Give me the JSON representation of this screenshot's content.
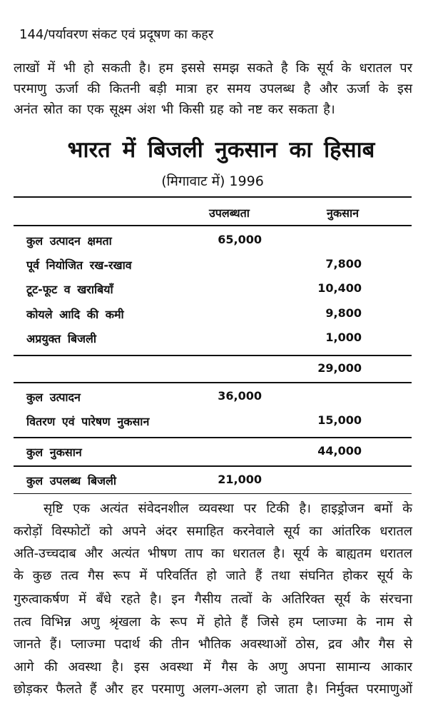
{
  "running_header": "144/पर्यावरण संकट एवं प्रदूषण का कहर",
  "paragraph1": [
    "लाखों में भी हो सकती है। हम इससे समझ सकते है कि सूर्य के धरातल पर",
    "परमाणु ऊर्जा की कितनी बड़ी मात्रा हर समय उपलब्ध है और ऊर्जा के इस",
    "अनंत स्रोत का एक सूक्ष्म अंश भी किसी ग्रह को नष्ट कर सकता है।"
  ],
  "table": {
    "title": "भारत में बिजली नुकसान का हिसाब",
    "subtitle": "(मिगावाट में) 1996",
    "columns": [
      "उपलब्धता",
      "नुकसान"
    ],
    "rows": [
      {
        "label": "कुल उत्पादन क्षमता",
        "availability": "65,000",
        "loss": ""
      },
      {
        "label": "पूर्व नियोजित रख-रखाव",
        "availability": "",
        "loss": "7,800"
      },
      {
        "label": "टूट-फूट व खराबियाँ",
        "availability": "",
        "loss": "10,400"
      },
      {
        "label": "कोयले आदि की कमी",
        "availability": "",
        "loss": "9,800"
      },
      {
        "label": "अप्रयुक्त बिजली",
        "availability": "",
        "loss": "1,000"
      },
      {
        "label": "",
        "availability": "",
        "loss": "29,000"
      },
      {
        "label": "कुल उत्पादन",
        "availability": "36,000",
        "loss": ""
      },
      {
        "label": "वितरण एवं पारेषण नुकसान",
        "availability": "",
        "loss": "15,000"
      },
      {
        "label": "कुल नुकसान",
        "availability": "",
        "loss": "44,000"
      },
      {
        "label": "कुल उपलब्ध बिजली",
        "availability": "21,000",
        "loss": ""
      }
    ]
  },
  "paragraph2": [
    "सृष्टि एक अत्यंत संवेदनशील व्यवस्था पर टिकी है। हाइड्रोजन बमों के",
    "करोड़ों विस्फोटों को अपने अंदर समाहित करनेवाले सूर्य का आंतरिक धरातल",
    "अति-उच्चदाब और अत्यंत भीषण ताप का धरातल है। सूर्य के बाह्यतम धरातल",
    "के कुछ तत्व गैस रूप में परिवर्तित हो जाते हैं तथा संघनित होकर सूर्य के",
    "गुरुत्वाकर्षण में बँधे रहते है। इन गैसीय तत्वों के अतिरिक्त सूर्य के संरचना",
    "तत्व विभिन्न अणु श्रृंखला के रूप में होते हैं जिसे हम प्लाज्मा के नाम से",
    "जानते हैं। प्लाज्मा पदार्थ की तीन भौतिक अवस्थाओं ठोस, द्रव और गैस से",
    "आगे की अवस्था है। इस अवस्था में गैस के अणु अपना सामान्य आकार",
    "छोड़कर फैलते हैं और हर परमाणु अलग-अलग हो जाता है। निर्मुक्त परमाणुओं"
  ]
}
